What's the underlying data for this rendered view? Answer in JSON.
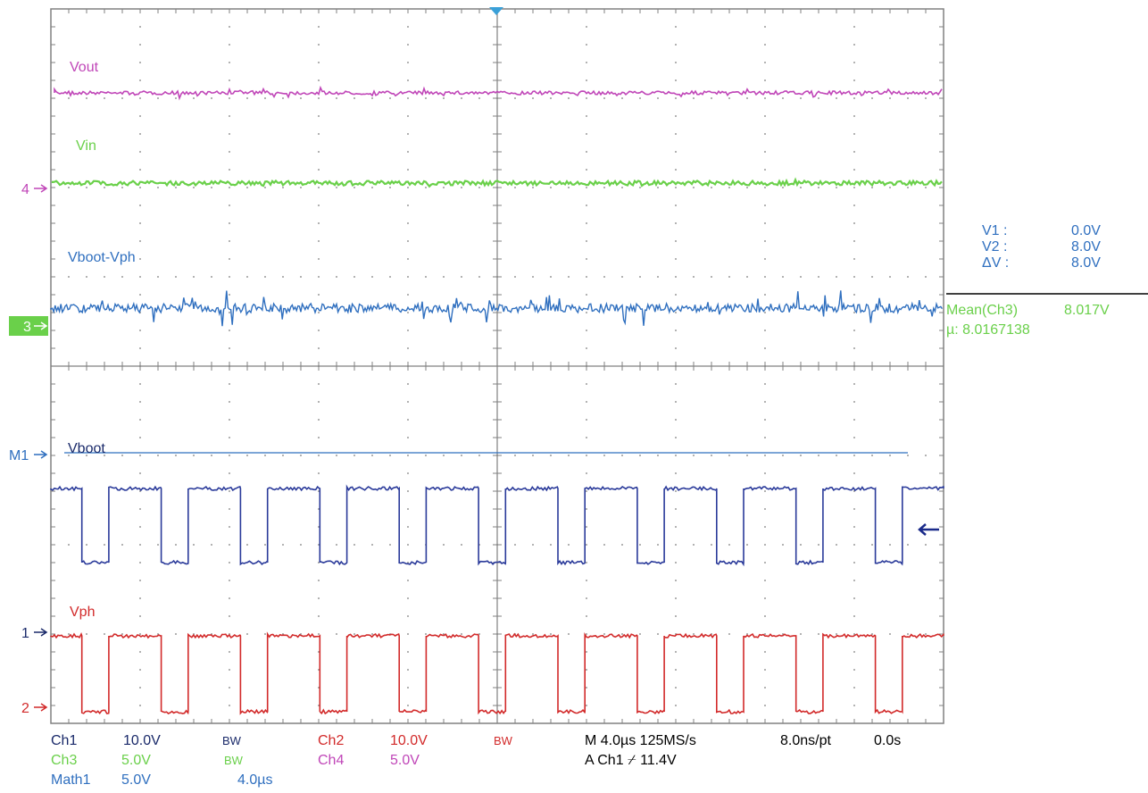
{
  "colors": {
    "ch1": "#2a3a9a",
    "ch2": "#d22a2a",
    "ch3": "#6ad04a",
    "ch4": "#c046b8",
    "math1": "#2f6fbf",
    "grid": "#808080",
    "bg": "#ffffff"
  },
  "trace_labels": {
    "vout": "Vout",
    "vin": "Vin",
    "vboot_vph": "Vboot-Vph",
    "vboot": "Vboot",
    "vph": "Vph"
  },
  "markers": {
    "ch4": "4",
    "ch3": "3",
    "math1": "M1",
    "ch1": "1",
    "ch2": "2"
  },
  "cursor": {
    "v1_label": "V1 :",
    "v1_value": "0.0V",
    "v2_label": "V2 :",
    "v2_value": "8.0V",
    "dv_label": "ΔV :",
    "dv_value": "8.0V"
  },
  "measurement": {
    "name": "Mean(Ch3)",
    "value": "8.017V",
    "mu_label": "µ:",
    "mu_value": "8.0167138"
  },
  "status": {
    "ch1": "Ch1",
    "ch1_scale": "10.0V",
    "bw1": "BW",
    "ch2": "Ch2",
    "ch2_scale": "10.0V",
    "bw2": "BW",
    "ch3": "Ch3",
    "ch3_scale": "5.0V",
    "bw3": "BW",
    "ch4": "Ch4",
    "ch4_scale": "5.0V",
    "math1": "Math1",
    "math1_scale": "5.0V",
    "math1_time": "4.0µs",
    "timebase": "M 4.0µs 125MS/s",
    "resolution": "8.0ns/pt",
    "delay": "0.0s",
    "trigger": "A  Ch1  ⌿  11.4V"
  },
  "waveform": {
    "switching_cycles": 11.25,
    "duty_high": 0.66
  }
}
